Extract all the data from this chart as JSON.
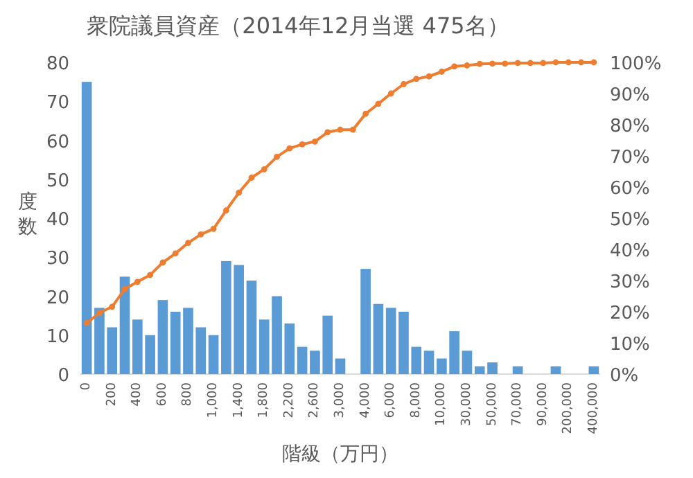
{
  "chart_data": {
    "type": "bar",
    "title": "衆院議員資産（2014年12月当選 475名）",
    "xlabel": "階級（万円）",
    "ylabel": "度数",
    "categories": [
      "0",
      null,
      "200",
      null,
      "400",
      null,
      "600",
      null,
      "800",
      null,
      "1,000",
      null,
      "1,400",
      null,
      "1,800",
      null,
      "2,200",
      null,
      "2,600",
      null,
      "3,000",
      null,
      "4,000",
      null,
      "6,000",
      null,
      "8,000",
      null,
      "10,000",
      null,
      "30,000",
      null,
      "50,000",
      null,
      "70,000",
      null,
      "90,000",
      null,
      "200,000",
      null,
      "400,000"
    ],
    "series": [
      {
        "color": "#5b9bd5",
        "values": [
          75,
          17,
          12,
          25,
          14,
          10,
          19,
          16,
          17,
          12,
          10,
          29,
          28,
          24,
          14,
          20,
          13,
          7,
          6,
          15,
          4,
          0,
          27,
          18,
          17,
          16,
          7,
          6,
          4,
          11,
          6,
          2,
          3,
          0,
          2,
          0,
          0,
          2,
          0,
          0,
          2
        ]
      },
      {
        "type": "line",
        "axis": "y2",
        "color": "#ed7d31",
        "values": [
          16.4,
          19.6,
          21.6,
          27.3,
          29.6,
          31.8,
          35.8,
          38.7,
          42.1,
          44.8,
          46.6,
          52.5,
          58.2,
          63,
          65.7,
          69.7,
          72.4,
          73.7,
          74.6,
          77.6,
          78.4,
          78.4,
          83.5,
          86.7,
          90,
          93,
          94.7,
          95.5,
          97,
          98.7,
          99,
          99.5,
          99.6,
          99.6,
          99.8,
          99.8,
          99.8,
          100,
          100,
          100,
          100
        ]
      }
    ],
    "ylim": [
      0,
      80
    ],
    "yticks": [
      0,
      10,
      20,
      30,
      40,
      50,
      60,
      70,
      80
    ],
    "y2lim": [
      0,
      100
    ],
    "y2ticks": [
      {
        "value": 0,
        "label": "0%"
      },
      {
        "value": 10,
        "label": "10%"
      },
      {
        "value": 20,
        "label": "20%"
      },
      {
        "value": 30,
        "label": "30%"
      },
      {
        "value": 40,
        "label": "40%"
      },
      {
        "value": 50,
        "label": "50%"
      },
      {
        "value": 60,
        "label": "60%"
      },
      {
        "value": 70,
        "label": "70%"
      },
      {
        "value": 80,
        "label": "80%"
      },
      {
        "value": 90,
        "label": "90%"
      },
      {
        "value": 100,
        "label": "100%"
      }
    ],
    "marker": "circle",
    "line_style": "solid"
  }
}
